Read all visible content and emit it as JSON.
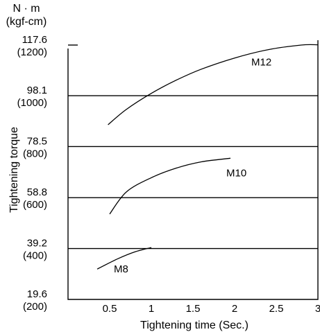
{
  "chart_data": {
    "type": "line",
    "xlabel": "Tightening time (Sec.)",
    "ylabel": "Tightening torque",
    "yunit_top": "N · m",
    "yunit_bottom": "(kgf-cm)",
    "xlim": [
      0,
      3
    ],
    "ylim": [
      19.6,
      117.6
    ],
    "x_ticks": [
      {
        "value": 0.5,
        "label": "0.5"
      },
      {
        "value": 1,
        "label": "1"
      },
      {
        "value": 1.5,
        "label": "1.5"
      },
      {
        "value": 2,
        "label": "2"
      },
      {
        "value": 2.5,
        "label": "2.5"
      },
      {
        "value": 3,
        "label": "3"
      }
    ],
    "y_ticks": [
      {
        "value": 117.6,
        "label": "117.6",
        "sublabel": "(1200)"
      },
      {
        "value": 98.1,
        "label": "98.1",
        "sublabel": "(1000)"
      },
      {
        "value": 78.5,
        "label": "78.5",
        "sublabel": "(800)"
      },
      {
        "value": 58.8,
        "label": "58.8",
        "sublabel": "(600)"
      },
      {
        "value": 39.2,
        "label": "39.2",
        "sublabel": "(400)"
      },
      {
        "value": 19.6,
        "label": "19.6",
        "sublabel": "(200)"
      }
    ],
    "grid_lines_y": [
      98.1,
      78.5,
      58.8,
      39.2
    ],
    "series": [
      {
        "name": "M12",
        "x": [
          0.48,
          0.7,
          1.0,
          1.3,
          1.6,
          2.0,
          2.4,
          2.8,
          3.0
        ],
        "y": [
          86.9,
          92.8,
          99.0,
          104.1,
          108.3,
          112.6,
          115.8,
          117.6,
          117.7
        ]
      },
      {
        "name": "M10",
        "x": [
          0.5,
          0.7,
          1.0,
          1.3,
          1.6,
          1.95
        ],
        "y": [
          52.5,
          61.0,
          66.5,
          70.2,
          72.6,
          74.0
        ]
      },
      {
        "name": "M8",
        "x": [
          0.35,
          0.6,
          0.8,
          1.0
        ],
        "y": [
          31.3,
          35.3,
          37.9,
          39.6
        ]
      }
    ]
  }
}
